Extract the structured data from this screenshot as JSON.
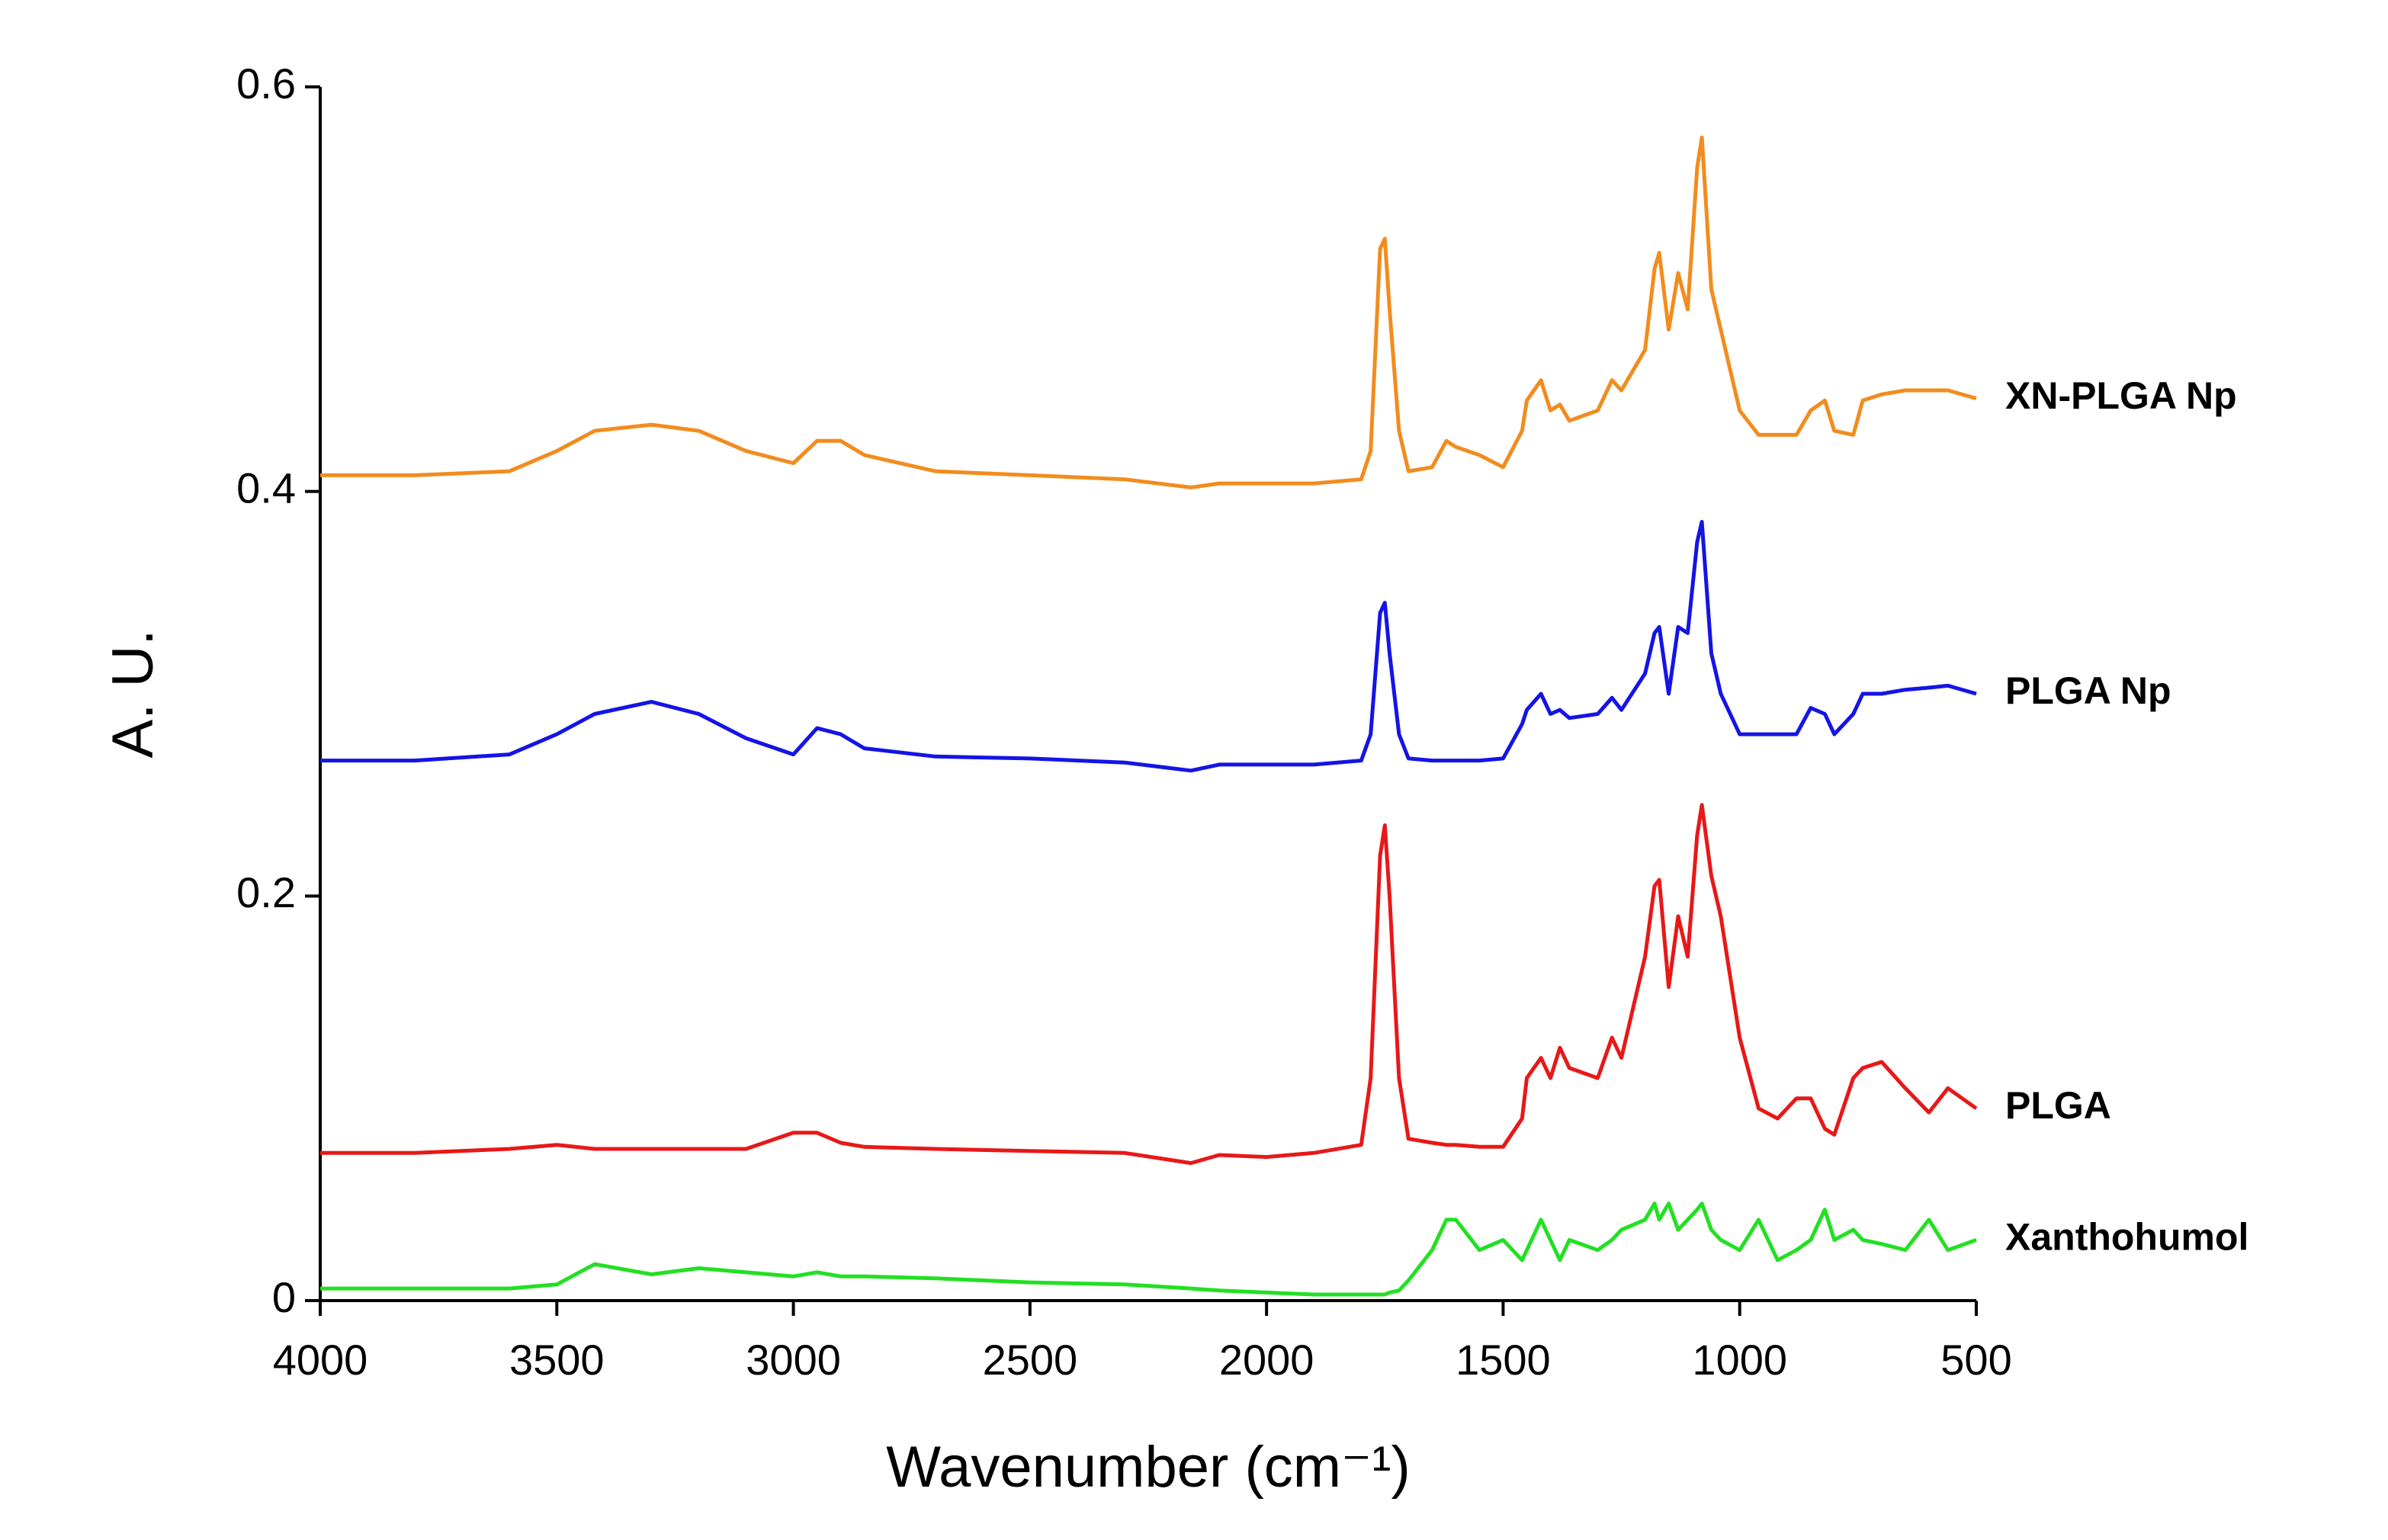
{
  "chart_data": {
    "type": "line",
    "xlabel": "Wavenumber (cm⁻¹)",
    "ylabel": "A. U.",
    "x": [
      4000,
      3800,
      3600,
      3500,
      3420,
      3300,
      3200,
      3100,
      3000,
      2950,
      2900,
      2850,
      2700,
      2500,
      2300,
      2160,
      2100,
      2000,
      1900,
      1800,
      1780,
      1760,
      1750,
      1740,
      1720,
      1700,
      1650,
      1620,
      1600,
      1550,
      1500,
      1460,
      1450,
      1420,
      1400,
      1380,
      1360,
      1300,
      1270,
      1250,
      1200,
      1180,
      1170,
      1150,
      1130,
      1110,
      1090,
      1080,
      1060,
      1040,
      1000,
      960,
      920,
      880,
      850,
      820,
      800,
      760,
      740,
      700,
      650,
      600,
      560,
      500
    ],
    "series": [
      {
        "name": "XN-PLGA Np",
        "color": "#f28c1e",
        "values": [
          0.408,
          0.408,
          0.41,
          0.42,
          0.43,
          0.433,
          0.43,
          0.42,
          0.414,
          0.425,
          0.425,
          0.418,
          0.41,
          0.408,
          0.406,
          0.402,
          0.404,
          0.404,
          0.404,
          0.406,
          0.42,
          0.52,
          0.525,
          0.49,
          0.43,
          0.41,
          0.412,
          0.425,
          0.422,
          0.418,
          0.412,
          0.43,
          0.445,
          0.455,
          0.44,
          0.443,
          0.435,
          0.44,
          0.455,
          0.45,
          0.47,
          0.51,
          0.518,
          0.48,
          0.508,
          0.49,
          0.56,
          0.575,
          0.5,
          0.48,
          0.44,
          0.428,
          0.428,
          0.428,
          0.44,
          0.445,
          0.43,
          0.428,
          0.445,
          0.448,
          0.45,
          0.45,
          0.45,
          0.446
        ]
      },
      {
        "name": "PLGA Np",
        "color": "#1414e6",
        "values": [
          0.267,
          0.267,
          0.27,
          0.28,
          0.29,
          0.296,
          0.29,
          0.278,
          0.27,
          0.283,
          0.28,
          0.273,
          0.269,
          0.268,
          0.266,
          0.262,
          0.265,
          0.265,
          0.265,
          0.267,
          0.28,
          0.34,
          0.345,
          0.32,
          0.28,
          0.268,
          0.267,
          0.267,
          0.267,
          0.267,
          0.268,
          0.285,
          0.292,
          0.3,
          0.29,
          0.292,
          0.288,
          0.29,
          0.298,
          0.292,
          0.31,
          0.33,
          0.333,
          0.3,
          0.333,
          0.33,
          0.375,
          0.385,
          0.32,
          0.3,
          0.28,
          0.28,
          0.28,
          0.28,
          0.293,
          0.29,
          0.28,
          0.29,
          0.3,
          0.3,
          0.302,
          0.303,
          0.304,
          0.3
        ]
      },
      {
        "name": "PLGA",
        "color": "#e81818",
        "values": [
          0.073,
          0.073,
          0.075,
          0.077,
          0.075,
          0.075,
          0.075,
          0.075,
          0.083,
          0.083,
          0.078,
          0.076,
          0.075,
          0.074,
          0.073,
          0.068,
          0.072,
          0.071,
          0.073,
          0.077,
          0.11,
          0.22,
          0.235,
          0.2,
          0.11,
          0.08,
          0.078,
          0.077,
          0.077,
          0.076,
          0.076,
          0.09,
          0.11,
          0.12,
          0.11,
          0.125,
          0.115,
          0.11,
          0.13,
          0.12,
          0.17,
          0.205,
          0.208,
          0.155,
          0.19,
          0.17,
          0.23,
          0.245,
          0.21,
          0.19,
          0.13,
          0.095,
          0.09,
          0.1,
          0.1,
          0.085,
          0.082,
          0.11,
          0.115,
          0.118,
          0.105,
          0.093,
          0.105,
          0.095
        ]
      },
      {
        "name": "Xanthohumol",
        "color": "#22e022",
        "values": [
          0.006,
          0.006,
          0.006,
          0.008,
          0.018,
          0.013,
          0.016,
          0.014,
          0.012,
          0.014,
          0.012,
          0.012,
          0.011,
          0.009,
          0.008,
          0.006,
          0.005,
          0.004,
          0.003,
          0.003,
          0.003,
          0.003,
          0.003,
          0.004,
          0.005,
          0.01,
          0.025,
          0.04,
          0.04,
          0.025,
          0.03,
          0.02,
          0.025,
          0.04,
          0.03,
          0.02,
          0.03,
          0.025,
          0.03,
          0.035,
          0.04,
          0.048,
          0.04,
          0.048,
          0.035,
          0.04,
          0.045,
          0.048,
          0.035,
          0.03,
          0.025,
          0.04,
          0.02,
          0.025,
          0.03,
          0.045,
          0.03,
          0.035,
          0.03,
          0.028,
          0.025,
          0.04,
          0.025,
          0.03
        ]
      }
    ],
    "xlim": [
      4000,
      500
    ],
    "xticks": [
      4000,
      3500,
      3000,
      2500,
      2000,
      1500,
      1000,
      500
    ],
    "ylim": [
      0,
      0.6
    ],
    "yticks": [
      0,
      0.2,
      0.4,
      0.6
    ],
    "grid": false
  }
}
